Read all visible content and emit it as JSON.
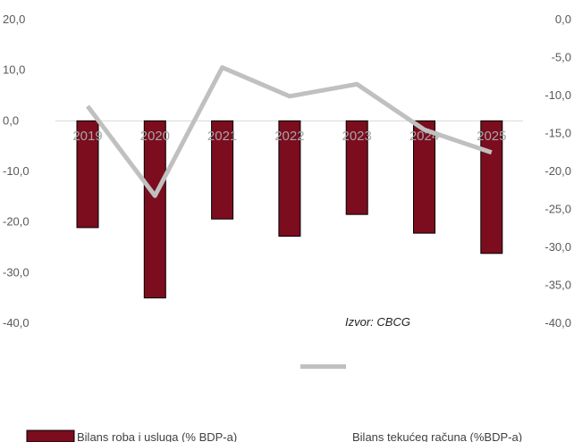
{
  "chart_data": {
    "type": "bar",
    "categories": [
      "2019",
      "2020",
      "2021",
      "2022",
      "2023",
      "2024",
      "2025"
    ],
    "series": [
      {
        "name": "Bilans roba i usluga (% BDP-a)",
        "type": "bar",
        "axis": "left",
        "color": "#7b0d1e",
        "values": [
          -21.1,
          -35.0,
          -19.4,
          -22.8,
          -18.5,
          -22.2,
          -26.2
        ]
      },
      {
        "name": "Bilans tekućeg računa (%BDP-a)",
        "type": "line",
        "axis": "right",
        "color": "#c0c0c0",
        "values": [
          -11.4,
          -23.2,
          -6.3,
          -10.1,
          -8.5,
          -14.5,
          -17.5
        ]
      }
    ],
    "y_left": {
      "ylim": [
        -40,
        20
      ],
      "ticks": [
        "20,0",
        "10,0",
        "0,0",
        "-10,0",
        "-20,0",
        "-30,0",
        "-40,0"
      ]
    },
    "y_right": {
      "ylim": [
        -40,
        0
      ],
      "ticks": [
        "0,0",
        "-5,0",
        "-10,0",
        "-15,0",
        "-20,0",
        "-25,0",
        "-30,0",
        "-35,0",
        "-40,0"
      ]
    },
    "annotation": "Izvor: CBCG",
    "grid": false,
    "legend_position": "bottom"
  }
}
